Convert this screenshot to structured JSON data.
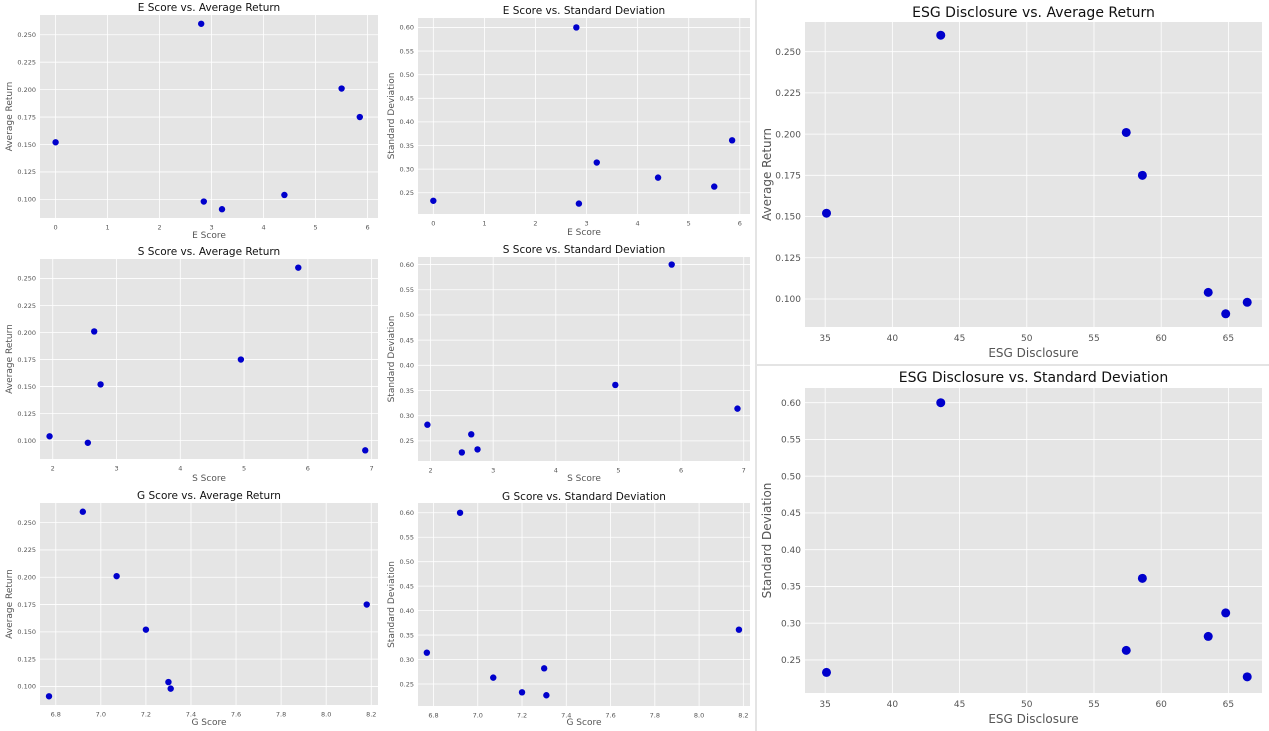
{
  "colors": {
    "plot_background": "#e5e5e5",
    "grid": "#ffffff",
    "marker": "#0000cc",
    "text": "#555555",
    "title": "#111111"
  },
  "chart_data": [
    {
      "id": "e-avg",
      "type": "scatter",
      "title": "E Score vs. Average Return",
      "xlabel": "E Score",
      "ylabel": "Average Return",
      "xlim": [
        -0.3,
        6.2
      ],
      "ylim": [
        0.083,
        0.268
      ],
      "xticks": [
        0,
        1,
        2,
        3,
        4,
        5,
        6
      ],
      "yticks": [
        0.1,
        0.125,
        0.15,
        0.175,
        0.2,
        0.225,
        0.25
      ],
      "xtick_labels": [
        "0",
        "1",
        "2",
        "3",
        "4",
        "5",
        "6"
      ],
      "ytick_labels": [
        "0.100",
        "0.125",
        "0.150",
        "0.175",
        "0.200",
        "0.225",
        "0.250"
      ],
      "grid": true,
      "points": [
        {
          "x": 0.0,
          "y": 0.152
        },
        {
          "x": 2.8,
          "y": 0.26
        },
        {
          "x": 2.85,
          "y": 0.098
        },
        {
          "x": 3.2,
          "y": 0.091
        },
        {
          "x": 4.4,
          "y": 0.104
        },
        {
          "x": 5.5,
          "y": 0.201
        },
        {
          "x": 5.85,
          "y": 0.175
        }
      ]
    },
    {
      "id": "e-std",
      "type": "scatter",
      "title": "E Score vs. Standard Deviation",
      "xlabel": "E Score",
      "ylabel": "Standard Deviation",
      "xlim": [
        -0.3,
        6.2
      ],
      "ylim": [
        0.205,
        0.62
      ],
      "xticks": [
        0,
        1,
        2,
        3,
        4,
        5,
        6
      ],
      "yticks": [
        0.25,
        0.3,
        0.35,
        0.4,
        0.45,
        0.5,
        0.55,
        0.6
      ],
      "xtick_labels": [
        "0",
        "1",
        "2",
        "3",
        "4",
        "5",
        "6"
      ],
      "ytick_labels": [
        "0.25",
        "0.30",
        "0.35",
        "0.40",
        "0.45",
        "0.50",
        "0.55",
        "0.60"
      ],
      "grid": true,
      "points": [
        {
          "x": 0.0,
          "y": 0.233
        },
        {
          "x": 2.8,
          "y": 0.6
        },
        {
          "x": 2.85,
          "y": 0.227
        },
        {
          "x": 3.2,
          "y": 0.314
        },
        {
          "x": 4.4,
          "y": 0.282
        },
        {
          "x": 5.5,
          "y": 0.263
        },
        {
          "x": 5.85,
          "y": 0.361
        }
      ]
    },
    {
      "id": "s-avg",
      "type": "scatter",
      "title": "S Score vs. Average Return",
      "xlabel": "S Score",
      "ylabel": "Average Return",
      "xlim": [
        1.8,
        7.1
      ],
      "ylim": [
        0.083,
        0.268
      ],
      "xticks": [
        2,
        3,
        4,
        5,
        6,
        7
      ],
      "yticks": [
        0.1,
        0.125,
        0.15,
        0.175,
        0.2,
        0.225,
        0.25
      ],
      "xtick_labels": [
        "2",
        "3",
        "4",
        "5",
        "6",
        "7"
      ],
      "ytick_labels": [
        "0.100",
        "0.125",
        "0.150",
        "0.175",
        "0.200",
        "0.225",
        "0.250"
      ],
      "grid": true,
      "points": [
        {
          "x": 1.95,
          "y": 0.104
        },
        {
          "x": 2.55,
          "y": 0.098
        },
        {
          "x": 2.65,
          "y": 0.201
        },
        {
          "x": 2.75,
          "y": 0.152
        },
        {
          "x": 4.95,
          "y": 0.175
        },
        {
          "x": 5.85,
          "y": 0.26
        },
        {
          "x": 6.9,
          "y": 0.091
        }
      ]
    },
    {
      "id": "s-std",
      "type": "scatter",
      "title": "S Score vs. Standard Deviation",
      "xlabel": "S Score",
      "ylabel": "Standard Deviation",
      "xlim": [
        1.8,
        7.1
      ],
      "ylim": [
        0.21,
        0.615
      ],
      "xticks": [
        2,
        3,
        4,
        5,
        6,
        7
      ],
      "yticks": [
        0.25,
        0.3,
        0.35,
        0.4,
        0.45,
        0.5,
        0.55,
        0.6
      ],
      "xtick_labels": [
        "2",
        "3",
        "4",
        "5",
        "6",
        "7"
      ],
      "ytick_labels": [
        "0.25",
        "0.30",
        "0.35",
        "0.40",
        "0.45",
        "0.50",
        "0.55",
        "0.60"
      ],
      "grid": true,
      "points": [
        {
          "x": 1.95,
          "y": 0.282
        },
        {
          "x": 2.5,
          "y": 0.227
        },
        {
          "x": 2.65,
          "y": 0.263
        },
        {
          "x": 2.75,
          "y": 0.233
        },
        {
          "x": 4.95,
          "y": 0.361
        },
        {
          "x": 5.85,
          "y": 0.6
        },
        {
          "x": 6.9,
          "y": 0.314
        }
      ]
    },
    {
      "id": "g-avg",
      "type": "scatter",
      "title": "G Score vs. Average Return",
      "xlabel": "G Score",
      "ylabel": "Average Return",
      "xlim": [
        6.73,
        8.23
      ],
      "ylim": [
        0.083,
        0.268
      ],
      "xticks": [
        6.8,
        7.0,
        7.2,
        7.4,
        7.6,
        7.8,
        8.0,
        8.2
      ],
      "yticks": [
        0.1,
        0.125,
        0.15,
        0.175,
        0.2,
        0.225,
        0.25
      ],
      "xtick_labels": [
        "6.8",
        "7.0",
        "7.2",
        "7.4",
        "7.6",
        "7.8",
        "8.0",
        "8.2"
      ],
      "ytick_labels": [
        "0.100",
        "0.125",
        "0.150",
        "0.175",
        "0.200",
        "0.225",
        "0.250"
      ],
      "grid": true,
      "points": [
        {
          "x": 6.77,
          "y": 0.091
        },
        {
          "x": 6.92,
          "y": 0.26
        },
        {
          "x": 7.07,
          "y": 0.201
        },
        {
          "x": 7.2,
          "y": 0.152
        },
        {
          "x": 7.3,
          "y": 0.104
        },
        {
          "x": 7.31,
          "y": 0.098
        },
        {
          "x": 8.18,
          "y": 0.175
        }
      ]
    },
    {
      "id": "g-std",
      "type": "scatter",
      "title": "G Score vs. Standard Deviation",
      "xlabel": "G Score",
      "ylabel": "Standard Deviation",
      "xlim": [
        6.73,
        8.23
      ],
      "ylim": [
        0.205,
        0.62
      ],
      "xticks": [
        6.8,
        7.0,
        7.2,
        7.4,
        7.6,
        7.8,
        8.0,
        8.2
      ],
      "yticks": [
        0.25,
        0.3,
        0.35,
        0.4,
        0.45,
        0.5,
        0.55,
        0.6
      ],
      "xtick_labels": [
        "6.8",
        "7.0",
        "7.2",
        "7.4",
        "7.6",
        "7.8",
        "8.0",
        "8.2"
      ],
      "ytick_labels": [
        "0.25",
        "0.30",
        "0.35",
        "0.40",
        "0.45",
        "0.50",
        "0.55",
        "0.60"
      ],
      "grid": true,
      "points": [
        {
          "x": 6.77,
          "y": 0.314
        },
        {
          "x": 6.92,
          "y": 0.6
        },
        {
          "x": 7.07,
          "y": 0.263
        },
        {
          "x": 7.2,
          "y": 0.233
        },
        {
          "x": 7.3,
          "y": 0.282
        },
        {
          "x": 7.31,
          "y": 0.227
        },
        {
          "x": 8.18,
          "y": 0.361
        }
      ]
    },
    {
      "id": "esg-avg",
      "type": "scatter",
      "title": "ESG Disclosure vs. Average Return",
      "xlabel": "ESG Disclosure",
      "ylabel": "Average Return",
      "xlim": [
        33.5,
        67.5
      ],
      "ylim": [
        0.083,
        0.268
      ],
      "xticks": [
        35,
        40,
        45,
        50,
        55,
        60,
        65
      ],
      "yticks": [
        0.1,
        0.125,
        0.15,
        0.175,
        0.2,
        0.225,
        0.25
      ],
      "xtick_labels": [
        "35",
        "40",
        "45",
        "50",
        "55",
        "60",
        "65"
      ],
      "ytick_labels": [
        "0.100",
        "0.125",
        "0.150",
        "0.175",
        "0.200",
        "0.225",
        "0.250"
      ],
      "grid": true,
      "points": [
        {
          "x": 35.1,
          "y": 0.152
        },
        {
          "x": 43.6,
          "y": 0.26
        },
        {
          "x": 57.4,
          "y": 0.201
        },
        {
          "x": 58.6,
          "y": 0.175
        },
        {
          "x": 63.5,
          "y": 0.104
        },
        {
          "x": 64.8,
          "y": 0.091
        },
        {
          "x": 66.4,
          "y": 0.098
        }
      ]
    },
    {
      "id": "esg-std",
      "type": "scatter",
      "title": "ESG Disclosure vs. Standard Deviation",
      "xlabel": "ESG Disclosure",
      "ylabel": "Standard Deviation",
      "xlim": [
        33.5,
        67.5
      ],
      "ylim": [
        0.205,
        0.62
      ],
      "xticks": [
        35,
        40,
        45,
        50,
        55,
        60,
        65
      ],
      "yticks": [
        0.25,
        0.3,
        0.35,
        0.4,
        0.45,
        0.5,
        0.55,
        0.6
      ],
      "xtick_labels": [
        "35",
        "40",
        "45",
        "50",
        "55",
        "60",
        "65"
      ],
      "ytick_labels": [
        "0.25",
        "0.30",
        "0.35",
        "0.40",
        "0.45",
        "0.50",
        "0.55",
        "0.60"
      ],
      "grid": true,
      "points": [
        {
          "x": 35.1,
          "y": 0.233
        },
        {
          "x": 43.6,
          "y": 0.6
        },
        {
          "x": 57.4,
          "y": 0.263
        },
        {
          "x": 58.6,
          "y": 0.361
        },
        {
          "x": 63.5,
          "y": 0.282
        },
        {
          "x": 64.8,
          "y": 0.314
        },
        {
          "x": 66.4,
          "y": 0.227
        }
      ]
    }
  ]
}
